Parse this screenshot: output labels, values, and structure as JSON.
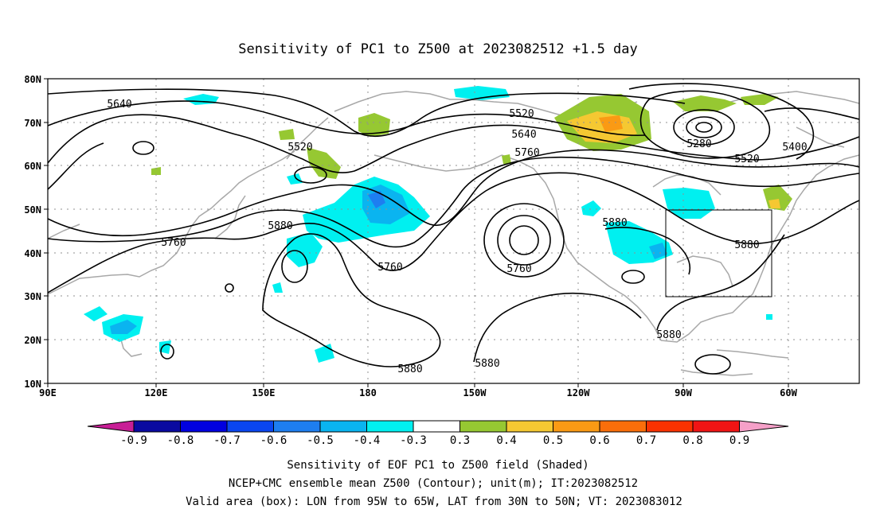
{
  "title": "Sensitivity of PC1 to Z500 at 2023082512 +1.5 day",
  "map": {
    "lon_ticks": [
      "90E",
      "120E",
      "150E",
      "180",
      "150W",
      "120W",
      "90W",
      "60W"
    ],
    "lat_ticks": [
      "80N",
      "70N",
      "60N",
      "50N",
      "40N",
      "30N",
      "20N",
      "10N"
    ]
  },
  "contour_labels": [
    "5640",
    "5520",
    "5520",
    "5640",
    "5760",
    "5280",
    "5400",
    "5520",
    "5760",
    "5880",
    "5880",
    "5760",
    "5760",
    "5880",
    "5880",
    "5880"
  ],
  "colorbar": {
    "labels": [
      "-0.9",
      "-0.8",
      "-0.7",
      "-0.6",
      "-0.5",
      "-0.4",
      "-0.3",
      "0.3",
      "0.4",
      "0.5",
      "0.6",
      "0.7",
      "0.8",
      "0.9"
    ],
    "colors": [
      "#0a0aa0",
      "#0000e0",
      "#0a46f0",
      "#1e7ef0",
      "#0ab4f0",
      "#00f0f0",
      "#ffffff",
      "#96c832",
      "#f5c832",
      "#fa9a14",
      "#fa6e0a",
      "#fa3200",
      "#f01414"
    ],
    "low_end_color": "#c81e96",
    "high_end_color": "#f5a0c8"
  },
  "valid_box": {
    "lon_min": -95,
    "lon_max": -65,
    "lat_min": 30,
    "lat_max": 50
  },
  "captions": [
    "Sensitivity of EOF PC1 to Z500 field (Shaded)",
    "NCEP+CMC ensemble mean Z500 (Contour); unit(m); IT:2023082512",
    "Valid area (box): LON from 95W to 65W, LAT from 30N to 50N; VT: 2023083012"
  ]
}
